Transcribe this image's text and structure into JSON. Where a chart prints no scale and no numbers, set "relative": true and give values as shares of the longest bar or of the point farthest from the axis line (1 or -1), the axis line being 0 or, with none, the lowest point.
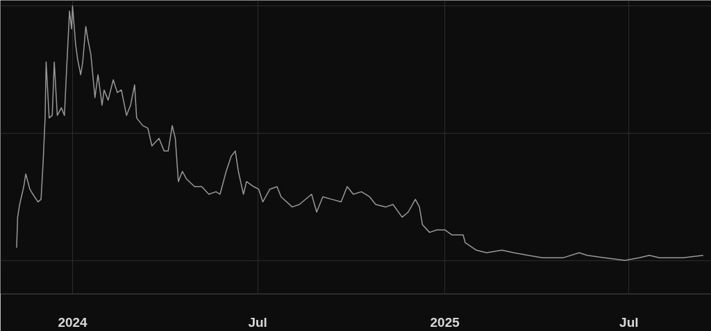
{
  "chart_data": {
    "type": "line",
    "relative": true,
    "grid": true,
    "x": [
      "2023-11-07",
      "2023-11-08",
      "2023-11-10",
      "2023-11-14",
      "2023-11-16",
      "2023-11-20",
      "2023-11-23",
      "2023-11-28",
      "2023-12-01",
      "2023-12-03",
      "2023-12-05",
      "2023-12-06",
      "2023-12-09",
      "2023-12-12",
      "2023-12-14",
      "2023-12-17",
      "2023-12-21",
      "2023-12-24",
      "2023-12-26",
      "2023-12-29",
      "2023-12-31",
      "2024-01-01",
      "2024-01-04",
      "2024-01-06",
      "2024-01-09",
      "2024-01-11",
      "2024-01-14",
      "2024-01-16",
      "2024-01-19",
      "2024-01-23",
      "2024-01-26",
      "2024-01-30",
      "2024-02-01",
      "2024-02-05",
      "2024-02-10",
      "2024-02-14",
      "2024-02-18",
      "2024-02-23",
      "2024-02-27",
      "2024-03-02",
      "2024-03-04",
      "2024-03-10",
      "2024-03-15",
      "2024-03-19",
      "2024-03-26",
      "2024-03-31",
      "2024-04-04",
      "2024-04-08",
      "2024-04-11",
      "2024-04-14",
      "2024-04-18",
      "2024-04-22",
      "2024-04-30",
      "2024-05-07",
      "2024-05-14",
      "2024-05-21",
      "2024-05-25",
      "2024-05-31",
      "2024-06-05",
      "2024-06-09",
      "2024-06-12",
      "2024-06-17",
      "2024-06-20",
      "2024-06-27",
      "2024-07-02",
      "2024-07-06",
      "2024-07-13",
      "2024-07-20",
      "2024-07-24",
      "2024-08-04",
      "2024-08-11",
      "2024-08-23",
      "2024-08-28",
      "2024-09-03",
      "2024-09-12",
      "2024-09-21",
      "2024-09-27",
      "2024-10-03",
      "2024-10-11",
      "2024-10-19",
      "2024-10-25",
      "2024-11-04",
      "2024-11-11",
      "2024-11-20",
      "2024-11-26",
      "2024-12-03",
      "2024-12-07",
      "2024-12-10",
      "2024-12-17",
      "2024-12-24",
      "2025-01-01",
      "2025-01-08",
      "2025-01-19",
      "2025-01-21",
      "2025-02-01",
      "2025-02-11",
      "2025-02-26",
      "2025-03-10",
      "2025-03-24",
      "2025-04-07",
      "2025-04-20",
      "2025-04-27",
      "2025-05-13",
      "2025-05-21",
      "2025-06-07",
      "2025-06-27",
      "2025-07-11",
      "2025-07-21",
      "2025-07-31",
      "2025-08-10",
      "2025-08-23",
      "2025-09-12"
    ],
    "series": [
      {
        "color": "#9a9a9a",
        "values": [
          0.05,
          0.17,
          0.22,
          0.29,
          0.34,
          0.28,
          0.26,
          0.23,
          0.24,
          0.38,
          0.56,
          0.78,
          0.56,
          0.57,
          0.78,
          0.57,
          0.6,
          0.57,
          0.74,
          0.98,
          0.91,
          1.0,
          0.85,
          0.79,
          0.73,
          0.78,
          0.92,
          0.87,
          0.81,
          0.64,
          0.73,
          0.61,
          0.67,
          0.63,
          0.71,
          0.66,
          0.67,
          0.57,
          0.61,
          0.69,
          0.56,
          0.53,
          0.52,
          0.45,
          0.48,
          0.43,
          0.43,
          0.53,
          0.48,
          0.31,
          0.35,
          0.32,
          0.29,
          0.29,
          0.26,
          0.27,
          0.26,
          0.35,
          0.41,
          0.43,
          0.35,
          0.26,
          0.31,
          0.29,
          0.28,
          0.23,
          0.28,
          0.29,
          0.25,
          0.21,
          0.22,
          0.26,
          0.19,
          0.25,
          0.24,
          0.23,
          0.29,
          0.26,
          0.27,
          0.25,
          0.22,
          0.21,
          0.22,
          0.17,
          0.19,
          0.24,
          0.21,
          0.14,
          0.11,
          0.12,
          0.12,
          0.1,
          0.1,
          0.07,
          0.04,
          0.03,
          0.04,
          0.03,
          0.02,
          0.01,
          0.01,
          0.01,
          0.03,
          0.02,
          0.01,
          0.0,
          0.01,
          0.02,
          0.01,
          0.01,
          0.01,
          0.02
        ]
      }
    ],
    "xlim": [
      "2023-10-22",
      "2025-09-20"
    ],
    "xticks": [
      {
        "value": "2024-01-01",
        "label": "2024"
      },
      {
        "value": "2024-07-01",
        "label": "Jul"
      },
      {
        "value": "2025-01-01",
        "label": "2025"
      },
      {
        "value": "2025-07-01",
        "label": "Jul"
      }
    ]
  }
}
